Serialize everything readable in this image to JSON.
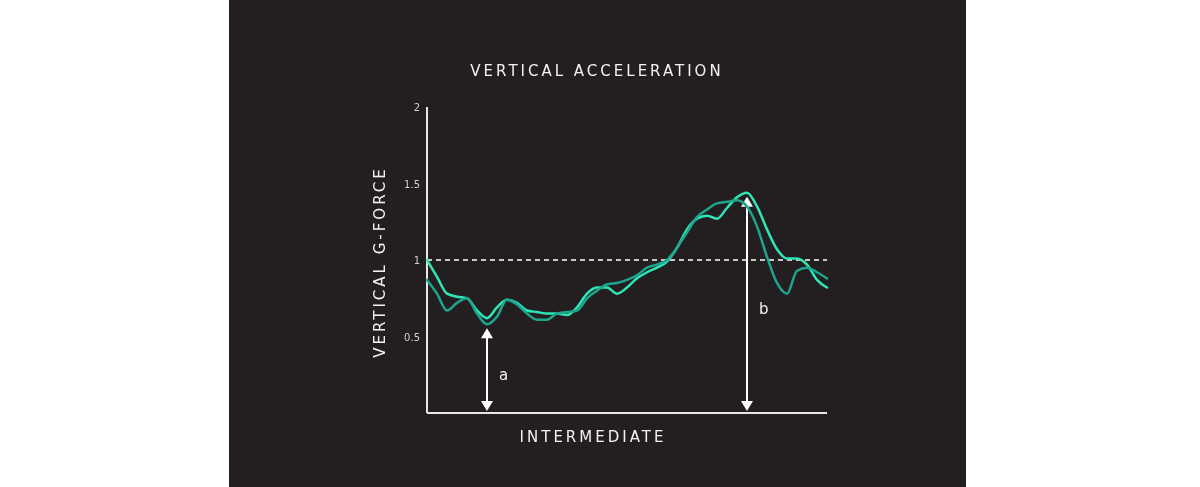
{
  "chart_data": {
    "type": "line",
    "title": "VERTICAL ACCELERATION",
    "xlabel": "INTERMEDIATE",
    "ylabel": "VERTICAL G-FORCE",
    "categories": [
      null,
      null,
      null,
      null,
      null,
      null,
      null,
      null,
      null,
      null,
      null,
      null,
      null,
      null,
      null,
      null,
      null,
      null,
      null,
      null,
      null,
      null,
      null,
      null,
      null,
      null,
      null,
      null,
      null,
      null,
      null,
      null,
      null,
      null,
      null,
      null,
      null,
      null,
      null,
      null,
      null
    ],
    "series": [
      {
        "color": "#2ee6b6",
        "values": [
          1.0,
          0.89,
          0.78,
          0.76,
          0.75,
          0.67,
          0.62,
          0.69,
          0.74,
          0.72,
          0.67,
          0.66,
          0.65,
          0.65,
          0.64,
          0.69,
          0.78,
          0.82,
          0.82,
          0.78,
          0.82,
          0.88,
          0.92,
          0.95,
          0.99,
          1.08,
          1.2,
          1.27,
          1.29,
          1.27,
          1.34,
          1.41,
          1.44,
          1.35,
          1.2,
          1.07,
          1.01,
          1.01,
          0.97,
          0.87,
          0.82
        ]
      },
      {
        "color": "#1da58d",
        "values": [
          0.87,
          0.78,
          0.67,
          0.72,
          0.75,
          0.65,
          0.58,
          0.63,
          0.74,
          0.71,
          0.65,
          0.61,
          0.61,
          0.65,
          0.66,
          0.67,
          0.75,
          0.8,
          0.84,
          0.85,
          0.87,
          0.9,
          0.95,
          0.97,
          1.0,
          1.08,
          1.18,
          1.28,
          1.33,
          1.37,
          1.38,
          1.39,
          1.35,
          1.22,
          1.02,
          0.85,
          0.78,
          0.93,
          0.95,
          0.92,
          0.88
        ]
      }
    ],
    "ylim": [
      0,
      2
    ],
    "yticks": [
      0.5,
      1,
      1.5,
      2
    ],
    "tick_labels": "y",
    "ref_lines": [
      {
        "axis": "y",
        "value": 1,
        "color": "#ffffff",
        "line_style": "dashed"
      }
    ],
    "annotations": [
      "a",
      "b"
    ]
  }
}
